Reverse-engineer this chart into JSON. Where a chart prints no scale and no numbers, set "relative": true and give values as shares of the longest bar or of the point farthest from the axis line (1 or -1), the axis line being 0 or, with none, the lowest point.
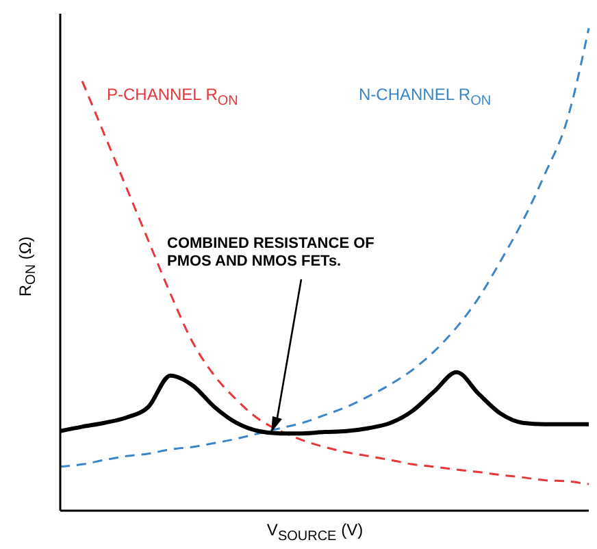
{
  "chart_data": {
    "type": "line",
    "relative": true,
    "xlabel": "V$_{SOURCE}$ (V)",
    "ylabel": "R$_{ON}$ (Ω)",
    "annotations": [
      "COMBINED RESISTANCE OF PMOS AND NMOS FETs."
    ],
    "categories": [
      null,
      null,
      null,
      null,
      null,
      null,
      null,
      null,
      null,
      null,
      null,
      null,
      null,
      null,
      null,
      null,
      null,
      null,
      null,
      null,
      null,
      null,
      null,
      null,
      null
    ],
    "series": [
      {
        "name": "P-CHANNEL R$_{ON}$",
        "color": "#e8363a",
        "line_style": "dashed",
        "values": [
          null,
          0.89,
          0.78,
          0.67,
          0.56,
          0.45,
          0.35,
          0.28,
          0.23,
          0.19,
          0.165,
          0.146,
          0.132,
          0.121,
          0.113,
          0.105,
          0.096,
          0.091,
          0.085,
          0.08,
          0.074,
          0.069,
          0.063,
          0.061,
          0.055
        ]
      },
      {
        "name": "N-CHANNEL R$_{ON}$",
        "color": "#3a86c8",
        "line_style": "dashed",
        "values": [
          0.091,
          0.096,
          0.105,
          0.113,
          0.118,
          0.127,
          0.132,
          0.14,
          0.149,
          0.16,
          0.171,
          0.182,
          0.198,
          0.215,
          0.237,
          0.262,
          0.292,
          0.331,
          0.38,
          0.441,
          0.518,
          0.6,
          0.697,
          0.807,
          1
        ]
      },
      {
        "color": "#000000",
        "line_style": "solid",
        "values": [
          0.165,
          0.174,
          0.182,
          0.193,
          0.215,
          0.28,
          0.26,
          0.215,
          0.182,
          0.165,
          0.16,
          0.16,
          0.163,
          0.165,
          0.171,
          0.182,
          0.207,
          0.248,
          0.287,
          0.242,
          0.201,
          0.182,
          0.179,
          0.179,
          0.179
        ]
      }
    ]
  }
}
